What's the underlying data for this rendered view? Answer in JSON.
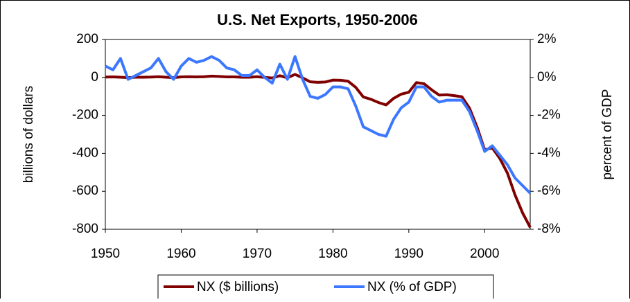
{
  "chart_data": {
    "type": "line",
    "title": "U.S. Net Exports, 1950-2006",
    "ylabel": "billions of dollars",
    "y2label": "percent of GDP",
    "x": [
      1950,
      1951,
      1952,
      1953,
      1954,
      1955,
      1956,
      1957,
      1958,
      1959,
      1960,
      1961,
      1962,
      1963,
      1964,
      1965,
      1966,
      1967,
      1968,
      1969,
      1970,
      1971,
      1972,
      1973,
      1974,
      1975,
      1976,
      1977,
      1978,
      1979,
      1980,
      1981,
      1982,
      1983,
      1984,
      1985,
      1986,
      1987,
      1988,
      1989,
      1990,
      1991,
      1992,
      1993,
      1994,
      1995,
      1996,
      1997,
      1998,
      1999,
      2000,
      2001,
      2002,
      2003,
      2004,
      2005,
      2006
    ],
    "series": [
      {
        "name": "NX ($ billions)",
        "color": "#800000",
        "axis": "y",
        "values": [
          2,
          3,
          1,
          -1,
          1,
          1,
          2,
          4,
          1,
          -1,
          3,
          4,
          3,
          4,
          7,
          5,
          3,
          3,
          1,
          1,
          4,
          0,
          -3,
          9,
          -2,
          16,
          -2,
          -23,
          -26,
          -24,
          -14,
          -15,
          -20,
          -52,
          -103,
          -115,
          -132,
          -145,
          -110,
          -88,
          -78,
          -27,
          -33,
          -65,
          -93,
          -91,
          -96,
          -102,
          -162,
          -262,
          -382,
          -371,
          -427,
          -504,
          -619,
          -714,
          -790
        ]
      },
      {
        "name": "NX (% of GDP)",
        "color": "#3c78ff",
        "axis": "y2",
        "values": [
          0.6,
          0.4,
          1.0,
          -0.1,
          0.1,
          0.3,
          0.5,
          1.0,
          0.3,
          -0.1,
          0.6,
          1.0,
          0.8,
          0.9,
          1.1,
          0.9,
          0.5,
          0.4,
          0.1,
          0.1,
          0.4,
          0.0,
          -0.3,
          0.7,
          -0.1,
          1.1,
          -0.1,
          -1.0,
          -1.1,
          -0.9,
          -0.5,
          -0.5,
          -0.6,
          -1.5,
          -2.6,
          -2.8,
          -3.0,
          -3.1,
          -2.2,
          -1.6,
          -1.3,
          -0.5,
          -0.5,
          -1.0,
          -1.3,
          -1.2,
          -1.2,
          -1.2,
          -1.8,
          -2.8,
          -3.9,
          -3.6,
          -4.1,
          -4.6,
          -5.3,
          -5.7,
          -6.1
        ]
      }
    ],
    "xlim": [
      1950,
      2006
    ],
    "xticks": [
      1950,
      1960,
      1970,
      1980,
      1990,
      2000
    ],
    "ylim": [
      -800,
      200
    ],
    "yticks": [
      -800,
      -600,
      -400,
      -200,
      0,
      200
    ],
    "y2lim": [
      -8,
      2
    ],
    "y2ticks": [
      {
        "value": -8,
        "label": "-8%"
      },
      {
        "value": -6,
        "label": "-6%"
      },
      {
        "value": -4,
        "label": "-4%"
      },
      {
        "value": -2,
        "label": "-2%"
      },
      {
        "value": 0,
        "label": "0%"
      },
      {
        "value": 2,
        "label": "2%"
      }
    ],
    "grid": false,
    "legend": "bottom"
  }
}
